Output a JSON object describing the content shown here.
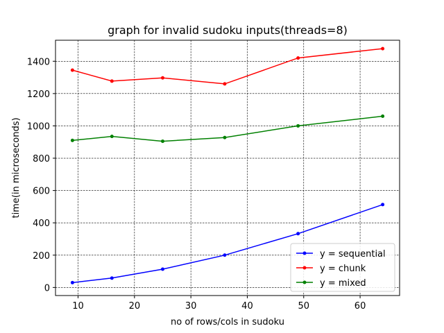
{
  "chart_data": {
    "type": "line",
    "title": "graph for invalid sudoku inputs(threads=8)",
    "xlabel": "no of rows/cols in sudoku",
    "ylabel": "time(in microseconds)",
    "x": [
      9,
      16,
      25,
      36,
      49,
      64
    ],
    "xlim": [
      6,
      67
    ],
    "ylim": [
      -50,
      1530
    ],
    "xticks": [
      10,
      20,
      30,
      40,
      50,
      60
    ],
    "yticks": [
      0,
      200,
      400,
      600,
      800,
      1000,
      1200,
      1400
    ],
    "grid": true,
    "grid_style": "dashed",
    "legend_position": "lower-right",
    "series": [
      {
        "name": "y = sequential",
        "color": "#0000ff",
        "values": [
          30,
          58,
          113,
          200,
          333,
          513
        ]
      },
      {
        "name": "y = chunk",
        "color": "#ff0000",
        "values": [
          1345,
          1277,
          1297,
          1260,
          1420,
          1478
        ]
      },
      {
        "name": "y = mixed",
        "color": "#008000",
        "values": [
          910,
          935,
          905,
          928,
          1000,
          1060
        ]
      }
    ]
  }
}
